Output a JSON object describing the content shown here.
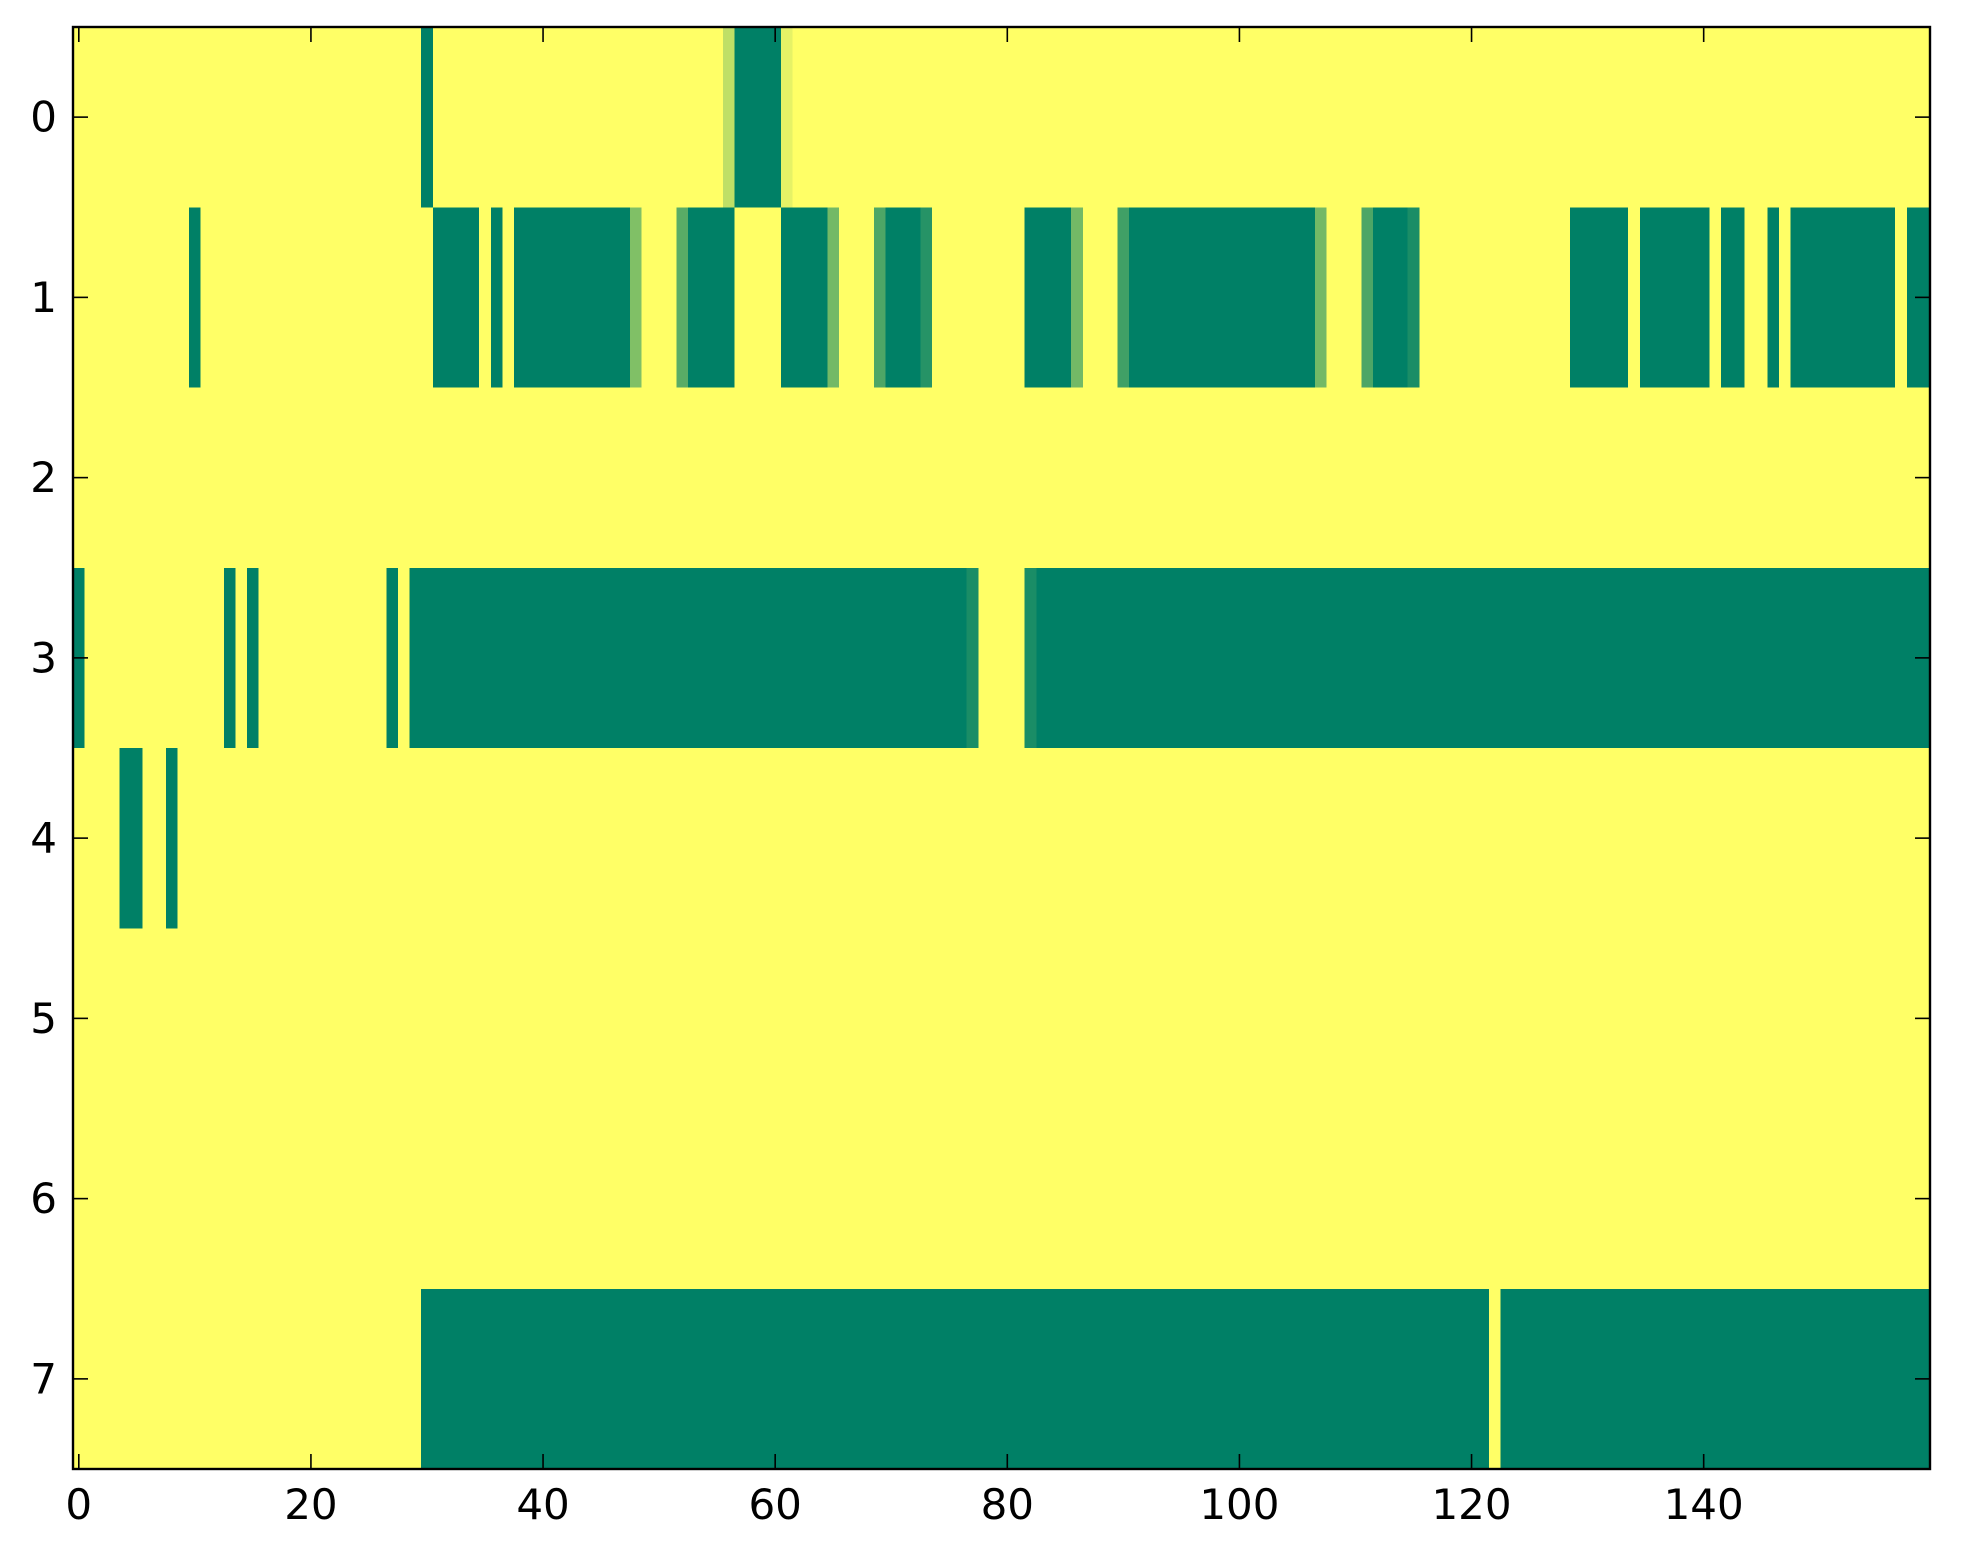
{
  "chart_data": {
    "type": "heatmap",
    "title": "",
    "xlabel": "",
    "ylabel": "",
    "xlim": [
      -0.5,
      159.5
    ],
    "ylim": [
      7.5,
      -0.5
    ],
    "x_ticks": [
      0,
      20,
      40,
      60,
      80,
      100,
      120,
      140
    ],
    "y_ticks": [
      0,
      1,
      2,
      3,
      4,
      5,
      6,
      7
    ],
    "grid": false,
    "legend": "none",
    "colors": {
      "low": "#ffff66",
      "high": "#008066",
      "intermediate": "#a8d46b"
    },
    "value_range": [
      0,
      1
    ],
    "background_value": 0,
    "rows": [
      {
        "row": 0,
        "segments": [
          {
            "start": 30,
            "end": 30,
            "value": 1
          },
          {
            "start": 56,
            "end": 56,
            "value": 0.25
          },
          {
            "start": 57,
            "end": 60,
            "value": 1
          },
          {
            "start": 61,
            "end": 61,
            "value": 0.1
          }
        ]
      },
      {
        "row": 1,
        "segments": [
          {
            "start": 10,
            "end": 10,
            "value": 1
          },
          {
            "start": 31,
            "end": 34,
            "value": 1
          },
          {
            "start": 36,
            "end": 36,
            "value": 1
          },
          {
            "start": 38,
            "end": 47,
            "value": 1
          },
          {
            "start": 48,
            "end": 48,
            "value": 0.5
          },
          {
            "start": 52,
            "end": 52,
            "value": 0.65
          },
          {
            "start": 53,
            "end": 56,
            "value": 1
          },
          {
            "start": 61,
            "end": 64,
            "value": 1
          },
          {
            "start": 65,
            "end": 65,
            "value": 0.55
          },
          {
            "start": 69,
            "end": 69,
            "value": 0.7
          },
          {
            "start": 70,
            "end": 72,
            "value": 1
          },
          {
            "start": 73,
            "end": 73,
            "value": 0.85
          },
          {
            "start": 82,
            "end": 85,
            "value": 1
          },
          {
            "start": 86,
            "end": 86,
            "value": 0.55
          },
          {
            "start": 90,
            "end": 90,
            "value": 0.75
          },
          {
            "start": 91,
            "end": 106,
            "value": 1
          },
          {
            "start": 107,
            "end": 107,
            "value": 0.55
          },
          {
            "start": 111,
            "end": 111,
            "value": 0.7
          },
          {
            "start": 112,
            "end": 114,
            "value": 1
          },
          {
            "start": 115,
            "end": 115,
            "value": 0.9
          },
          {
            "start": 129,
            "end": 133,
            "value": 1
          },
          {
            "start": 135,
            "end": 140,
            "value": 1
          },
          {
            "start": 142,
            "end": 143,
            "value": 1
          },
          {
            "start": 146,
            "end": 146,
            "value": 1
          },
          {
            "start": 148,
            "end": 156,
            "value": 1
          },
          {
            "start": 158,
            "end": 159,
            "value": 1
          }
        ]
      },
      {
        "row": 2,
        "segments": []
      },
      {
        "row": 3,
        "segments": [
          {
            "start": 0,
            "end": 0,
            "value": 1
          },
          {
            "start": 13,
            "end": 13,
            "value": 1
          },
          {
            "start": 15,
            "end": 15,
            "value": 1
          },
          {
            "start": 27,
            "end": 27,
            "value": 1
          },
          {
            "start": 29,
            "end": 76,
            "value": 1
          },
          {
            "start": 77,
            "end": 77,
            "value": 0.9
          },
          {
            "start": 82,
            "end": 82,
            "value": 0.9
          },
          {
            "start": 83,
            "end": 159,
            "value": 1
          }
        ]
      },
      {
        "row": 4,
        "segments": [
          {
            "start": 4,
            "end": 5,
            "value": 1
          },
          {
            "start": 8,
            "end": 8,
            "value": 1
          }
        ]
      },
      {
        "row": 5,
        "segments": []
      },
      {
        "row": 6,
        "segments": []
      },
      {
        "row": 7,
        "segments": [
          {
            "start": 30,
            "end": 121,
            "value": 1
          },
          {
            "start": 123,
            "end": 159,
            "value": 1
          }
        ]
      }
    ]
  }
}
